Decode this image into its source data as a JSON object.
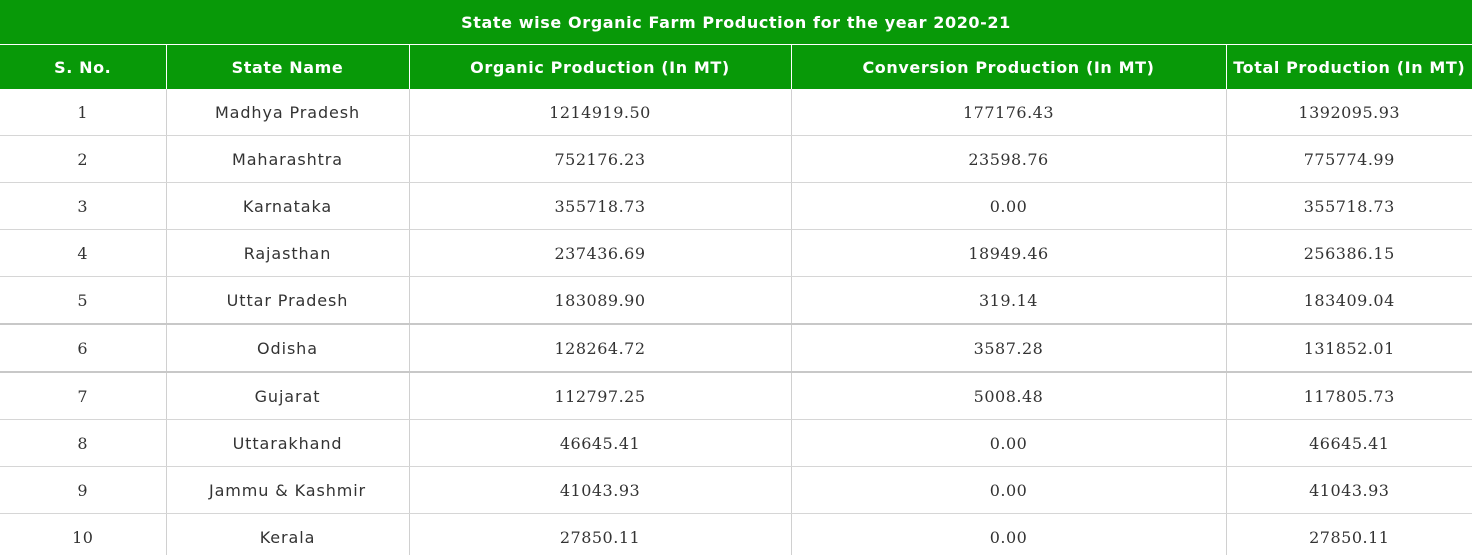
{
  "chart_data": {
    "type": "table",
    "title": "State wise Organic Farm Production for the year 2020-21",
    "columns": [
      "S. No.",
      "State Name",
      "Organic Production (In MT)",
      "Conversion Production (In MT)",
      "Total Production (In MT)"
    ],
    "rows": [
      [
        "1",
        "Madhya Pradesh",
        "1214919.50",
        "177176.43",
        "1392095.93"
      ],
      [
        "2",
        "Maharashtra",
        "752176.23",
        "23598.76",
        "775774.99"
      ],
      [
        "3",
        "Karnataka",
        "355718.73",
        "0.00",
        "355718.73"
      ],
      [
        "4",
        "Rajasthan",
        "237436.69",
        "18949.46",
        "256386.15"
      ],
      [
        "5",
        "Uttar Pradesh",
        "183089.90",
        "319.14",
        "183409.04"
      ],
      [
        "6",
        "Odisha",
        "128264.72",
        "3587.28",
        "131852.01"
      ],
      [
        "7",
        "Gujarat",
        "112797.25",
        "5008.48",
        "117805.73"
      ],
      [
        "8",
        "Uttarakhand",
        "46645.41",
        "0.00",
        "46645.41"
      ],
      [
        "9",
        "Jammu & Kashmir",
        "41043.93",
        "0.00",
        "41043.93"
      ],
      [
        "10",
        "Kerala",
        "27850.11",
        "0.00",
        "27850.11"
      ]
    ]
  },
  "colors": {
    "header_bg": "#089908",
    "header_text": "#ffffff",
    "cell_text": "#333333",
    "grid_line": "#d0d0d0"
  }
}
